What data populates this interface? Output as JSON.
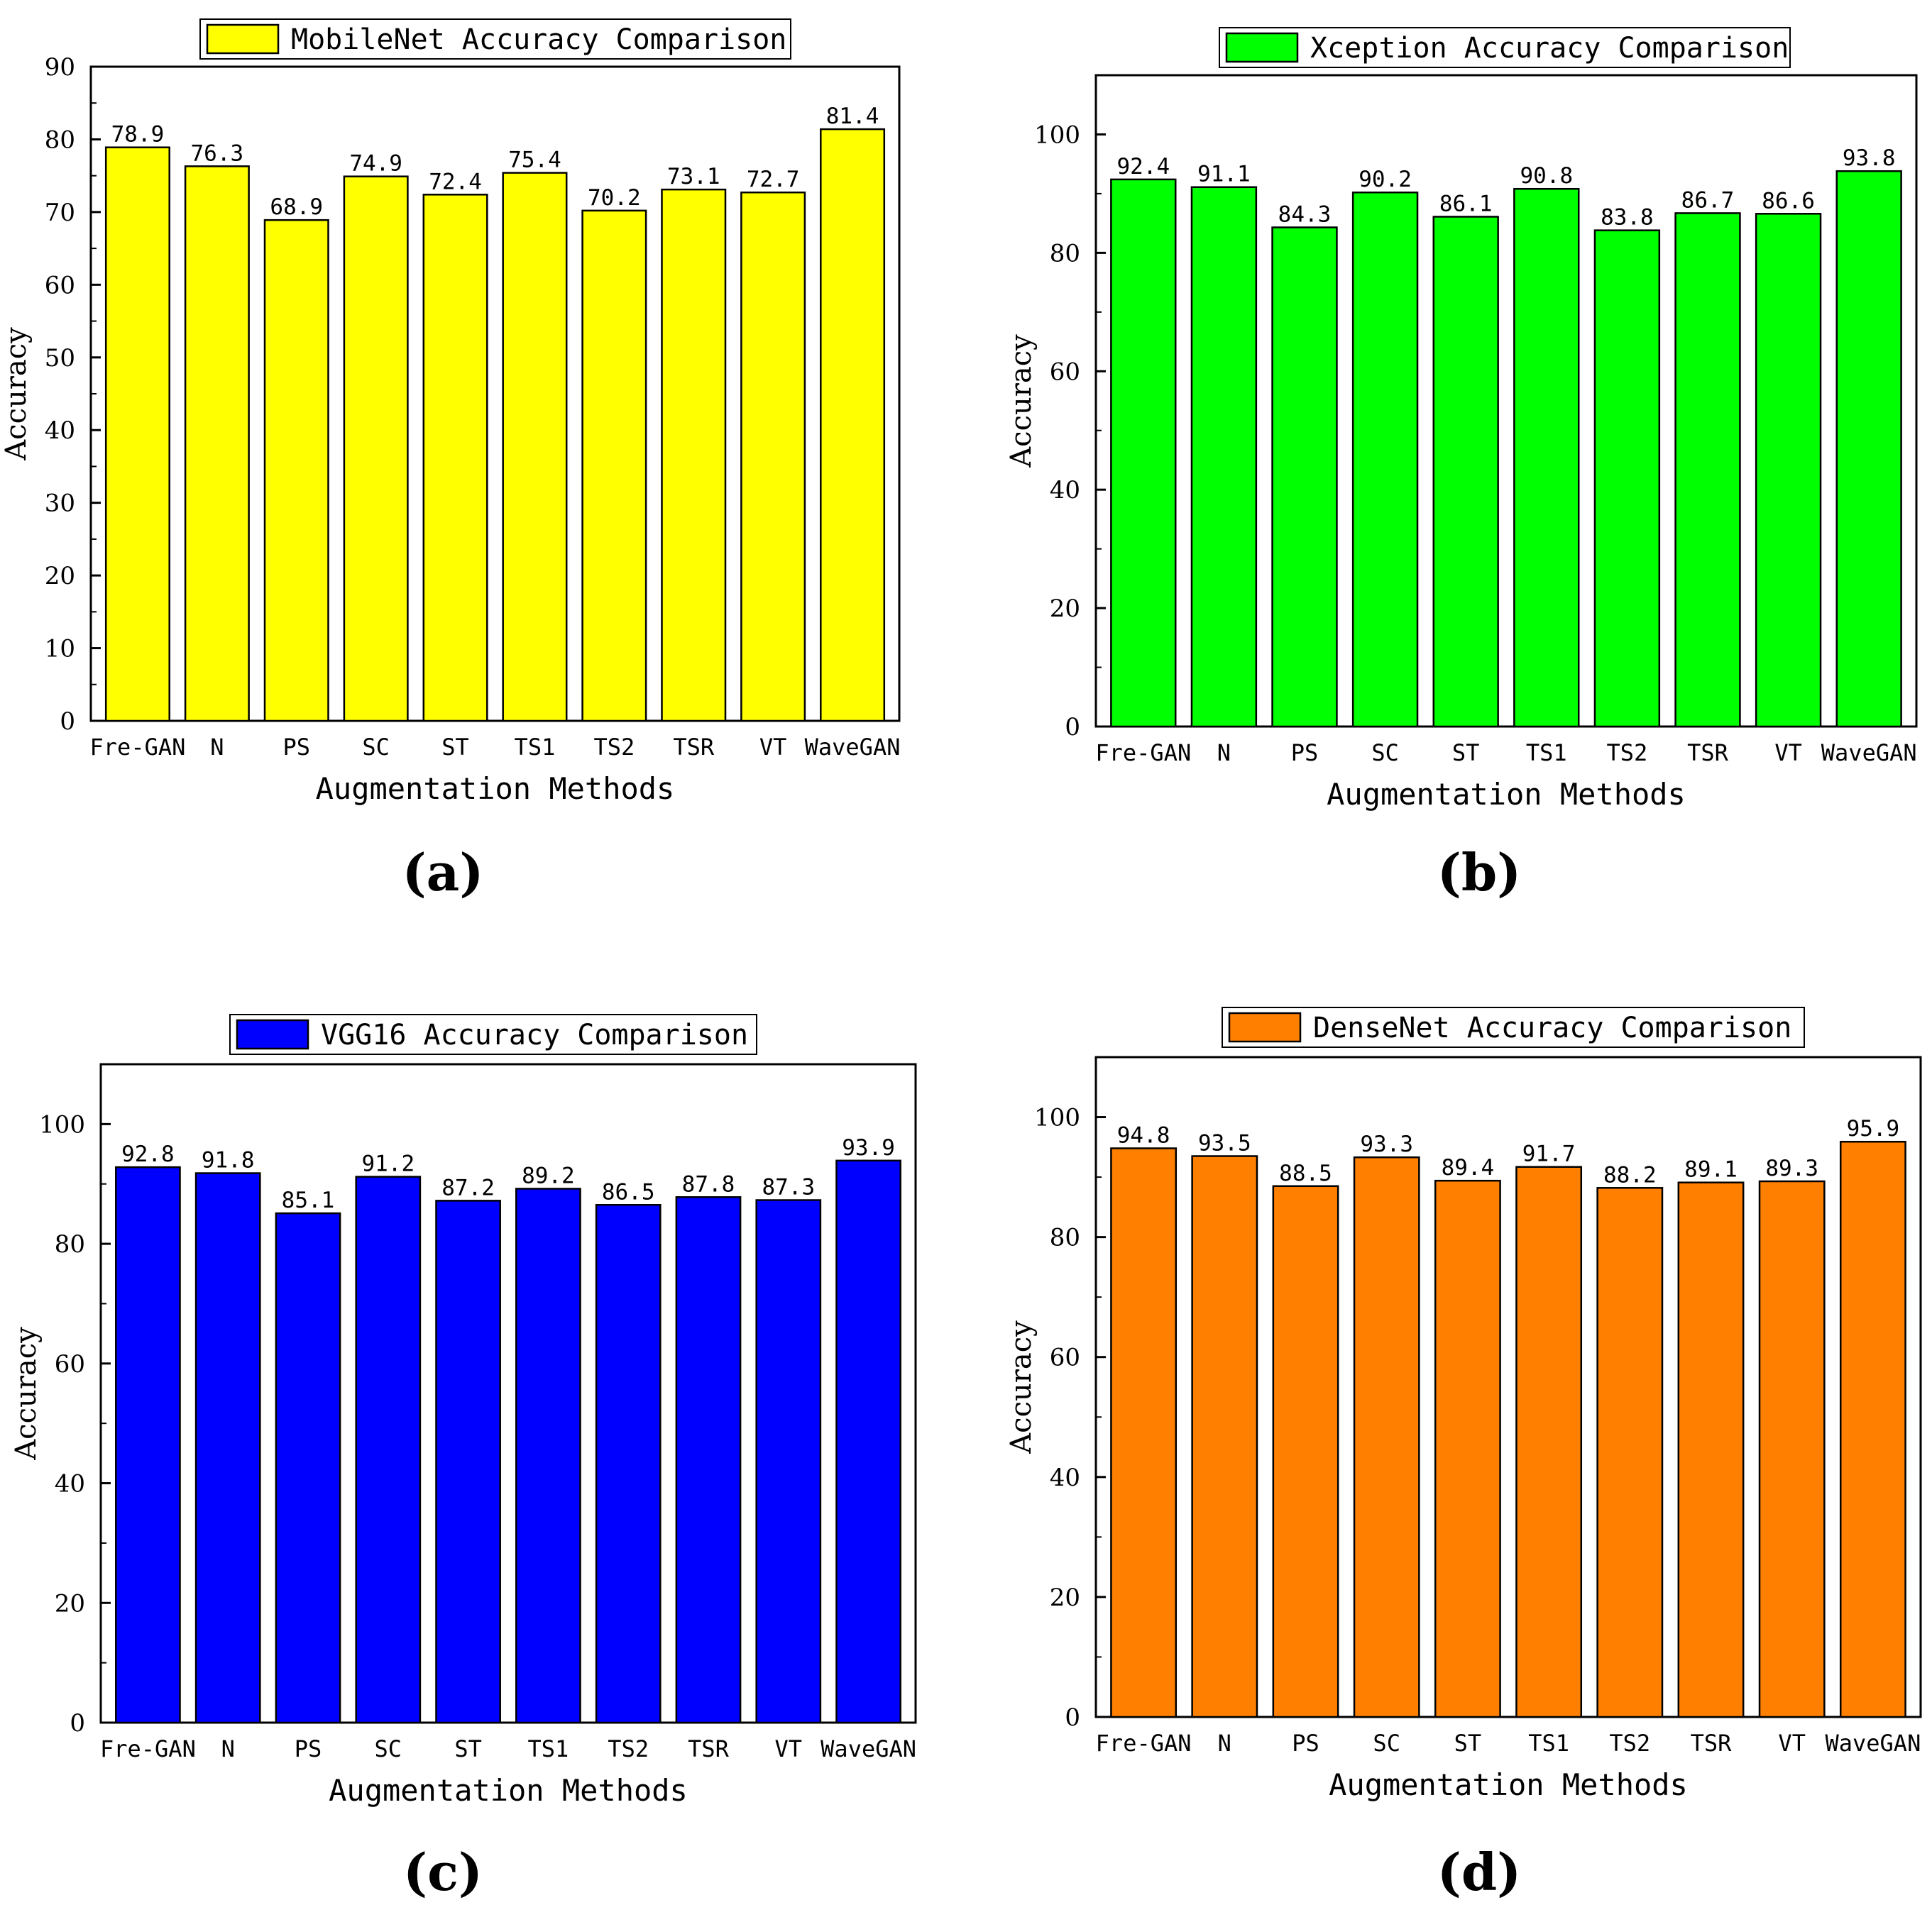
{
  "figure": {
    "panel_labels": [
      "(a)",
      "(b)",
      "(c)",
      "(d)"
    ]
  },
  "chart_data": [
    {
      "type": "bar",
      "title": "MobileNet Accuracy Comparison",
      "legend_label": "MobileNet Accuracy Comparison",
      "legend_placement": "top-center",
      "color": "#FFFF00",
      "xlabel": "Augmentation Methods",
      "ylabel": "Accuracy",
      "ylim": [
        0,
        90
      ],
      "yticks": [
        0,
        10,
        20,
        30,
        40,
        50,
        60,
        70,
        80,
        90
      ],
      "grid": false,
      "categories": [
        "Fre-GAN",
        "N",
        "PS",
        "SC",
        "ST",
        "TS1",
        "TS2",
        "TSR",
        "VT",
        "WaveGAN"
      ],
      "values": [
        78.9,
        76.3,
        68.9,
        74.9,
        72.4,
        75.4,
        70.2,
        73.1,
        72.7,
        81.4
      ],
      "value_labels": [
        "78.9",
        "76.3",
        "68.9",
        "74.9",
        "72.4",
        "75.4",
        "70.2",
        "73.1",
        "72.7",
        "81.4"
      ]
    },
    {
      "type": "bar",
      "title": "Xception Accuracy Comparison",
      "legend_label": "Xception Accuracy Comparison",
      "legend_placement": "top-center",
      "color": "#00FF00",
      "xlabel": "Augmentation Methods",
      "ylabel": "Accuracy",
      "ylim": [
        0,
        110
      ],
      "yticks": [
        0,
        20,
        40,
        60,
        80,
        100
      ],
      "grid": false,
      "categories": [
        "Fre-GAN",
        "N",
        "PS",
        "SC",
        "ST",
        "TS1",
        "TS2",
        "TSR",
        "VT",
        "WaveGAN"
      ],
      "values": [
        92.4,
        91.1,
        84.3,
        90.2,
        86.1,
        90.8,
        83.8,
        86.7,
        86.6,
        93.8
      ],
      "value_labels": [
        "92.4",
        "91.1",
        "84.3",
        "90.2",
        "86.1",
        "90.8",
        "83.8",
        "86.7",
        "86.6",
        "93.8"
      ]
    },
    {
      "type": "bar",
      "title": "VGG16 Accuracy Comparison",
      "legend_label": "VGG16 Accuracy Comparison",
      "legend_placement": "top-center",
      "color": "#0000FF",
      "xlabel": "Augmentation Methods",
      "ylabel": "Accuracy",
      "ylim": [
        0,
        110
      ],
      "yticks": [
        0,
        20,
        40,
        60,
        80,
        100
      ],
      "grid": false,
      "categories": [
        "Fre-GAN",
        "N",
        "PS",
        "SC",
        "ST",
        "TS1",
        "TS2",
        "TSR",
        "VT",
        "WaveGAN"
      ],
      "values": [
        92.8,
        91.8,
        85.1,
        91.2,
        87.2,
        89.2,
        86.5,
        87.8,
        87.3,
        93.9
      ],
      "value_labels": [
        "92.8",
        "91.8",
        "85.1",
        "91.2",
        "87.2",
        "89.2",
        "86.5",
        "87.8",
        "87.3",
        "93.9"
      ]
    },
    {
      "type": "bar",
      "title": "DenseNet Accuracy Comparison",
      "legend_label": "DenseNet Accuracy Comparison",
      "legend_placement": "top-center",
      "color": "#FF8000",
      "xlabel": "Augmentation Methods",
      "ylabel": "Accuracy",
      "ylim": [
        0,
        110
      ],
      "yticks": [
        0,
        20,
        40,
        60,
        80,
        100
      ],
      "grid": false,
      "categories": [
        "Fre-GAN",
        "N",
        "PS",
        "SC",
        "ST",
        "TS1",
        "TS2",
        "TSR",
        "VT",
        "WaveGAN"
      ],
      "values": [
        94.8,
        93.5,
        88.5,
        93.3,
        89.4,
        91.7,
        88.2,
        89.1,
        89.3,
        95.9
      ],
      "value_labels": [
        "94.8",
        "93.5",
        "88.5",
        "93.3",
        "89.4",
        "91.7",
        "88.2",
        "89.1",
        "89.3",
        "95.9"
      ]
    }
  ]
}
